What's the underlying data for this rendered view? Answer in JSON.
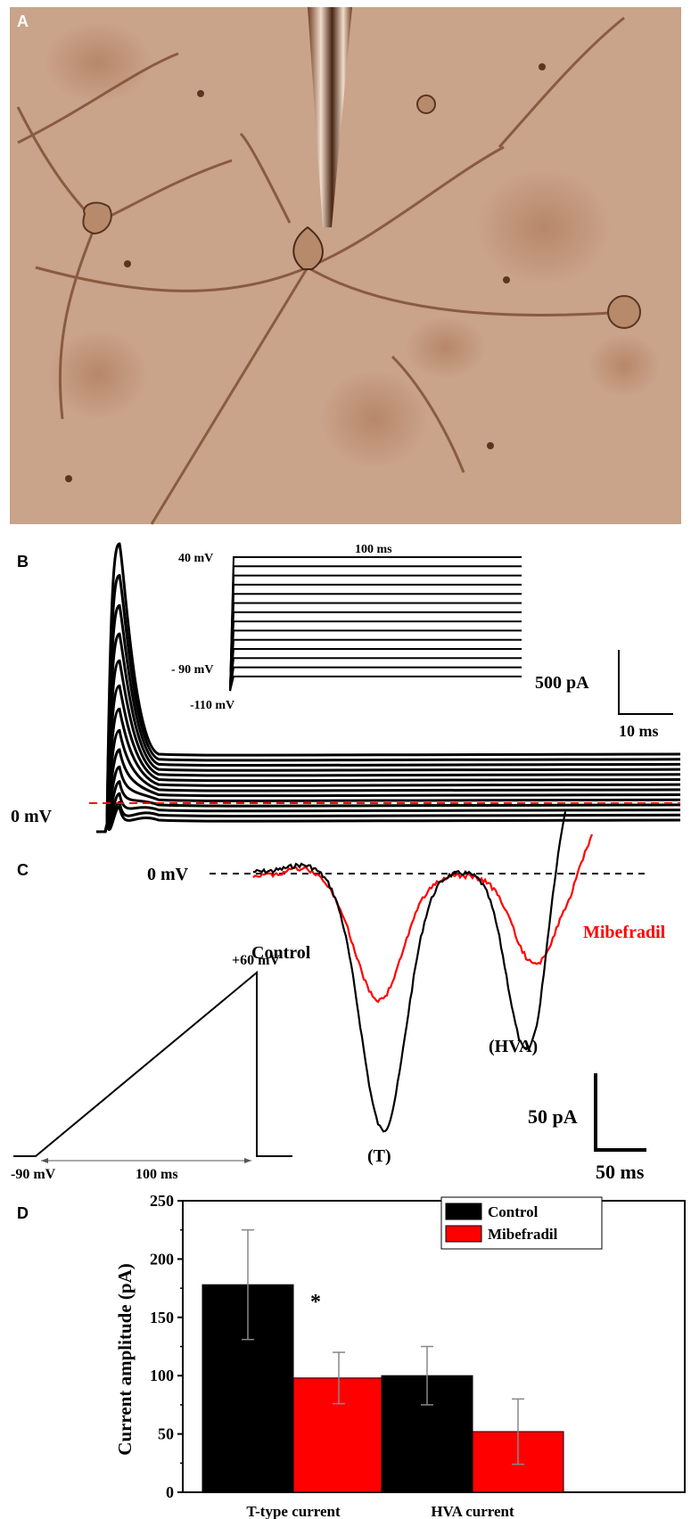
{
  "panels": {
    "a": {
      "letter": "A"
    },
    "b": {
      "letter": "B",
      "inset_top_label": "40 mV",
      "inset_duration_label": "100 ms",
      "inset_hold_label": "- 90 mV",
      "inset_pre_label": "-110 mV",
      "scale_y_label": "500 pA",
      "scale_x_label": "10 ms",
      "zero_label": "0 mV"
    },
    "c": {
      "letter": "C",
      "zero_label": "0 mV",
      "control_label": "Control",
      "mibefradil_label": "Mibefradil",
      "ramp_top_label": "+60 mV",
      "ramp_start_label": "-90 mV",
      "ramp_duration_label": "100 ms",
      "t_label": "(T)",
      "hva_label": "(HVA)",
      "scale_y_label": "50 pA",
      "scale_x_label": "50 ms"
    },
    "d": {
      "letter": "D",
      "significance": "*"
    }
  },
  "colors": {
    "control": "#000000",
    "mibefradil": "#ff0000",
    "photo_bg": "#c9a38a"
  },
  "chart_data": {
    "type": "bar",
    "categories": [
      "T-type current",
      "HVA current"
    ],
    "series": [
      {
        "name": "Control",
        "values": [
          178,
          100
        ],
        "errors": [
          47,
          25
        ]
      },
      {
        "name": "Mibefradil",
        "values": [
          98,
          52
        ],
        "errors": [
          22,
          28
        ]
      }
    ],
    "ylabel": "Current amplitude (pA)",
    "ylim": [
      0,
      250
    ],
    "yticks": [
      "0",
      "50",
      "100",
      "150",
      "200",
      "250"
    ],
    "legend": "top-right"
  }
}
